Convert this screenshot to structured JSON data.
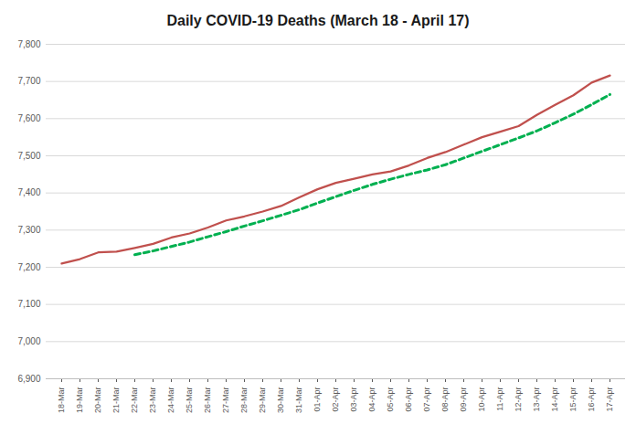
{
  "chart_data": {
    "type": "line",
    "title": "Daily COVID-19 Deaths (March 18 - April 17)",
    "categories": [
      "18-Mar",
      "19-Mar",
      "20-Mar",
      "21-Mar",
      "22-Mar",
      "23-Mar",
      "24-Mar",
      "25-Mar",
      "26-Mar",
      "27-Mar",
      "28-Mar",
      "29-Mar",
      "30-Mar",
      "31-Mar",
      "01-Apr",
      "02-Apr",
      "03-Apr",
      "04-Apr",
      "05-Apr",
      "06-Apr",
      "07-Apr",
      "08-Apr",
      "09-Apr",
      "10-Apr",
      "11-Apr",
      "12-Apr",
      "13-Apr",
      "14-Apr",
      "15-Apr",
      "16-Apr",
      "17-Apr"
    ],
    "series": [
      {
        "color": "#c0504d",
        "line_style": "solid",
        "values": [
          7210,
          7222,
          7240,
          7242,
          7252,
          7263,
          7280,
          7291,
          7307,
          7326,
          7337,
          7350,
          7365,
          7388,
          7410,
          7427,
          7438,
          7450,
          7458,
          7474,
          7494,
          7510,
          7530,
          7550,
          7565,
          7580,
          7610,
          7637,
          7663,
          7697,
          7716
        ]
      },
      {
        "color": "#00b050",
        "line_style": "dashed",
        "values": [
          null,
          null,
          null,
          null,
          7234,
          7244,
          7256,
          7268,
          7282,
          7296,
          7311,
          7325,
          7340,
          7355,
          7373,
          7390,
          7407,
          7423,
          7437,
          7450,
          7462,
          7476,
          7494,
          7512,
          7530,
          7548,
          7567,
          7589,
          7612,
          7638,
          7665
        ]
      }
    ],
    "ylim": [
      6900,
      7800
    ],
    "yticks": [
      {
        "value": 6900,
        "label": "6,900"
      },
      {
        "value": 7000,
        "label": "7,000"
      },
      {
        "value": 7100,
        "label": "7,100"
      },
      {
        "value": 7200,
        "label": "7,200"
      },
      {
        "value": 7300,
        "label": "7,300"
      },
      {
        "value": 7400,
        "label": "7,400"
      },
      {
        "value": 7500,
        "label": "7,500"
      },
      {
        "value": 7600,
        "label": "7,600"
      },
      {
        "value": 7700,
        "label": "7,700"
      },
      {
        "value": 7800,
        "label": "7,800"
      }
    ],
    "grid": true
  }
}
